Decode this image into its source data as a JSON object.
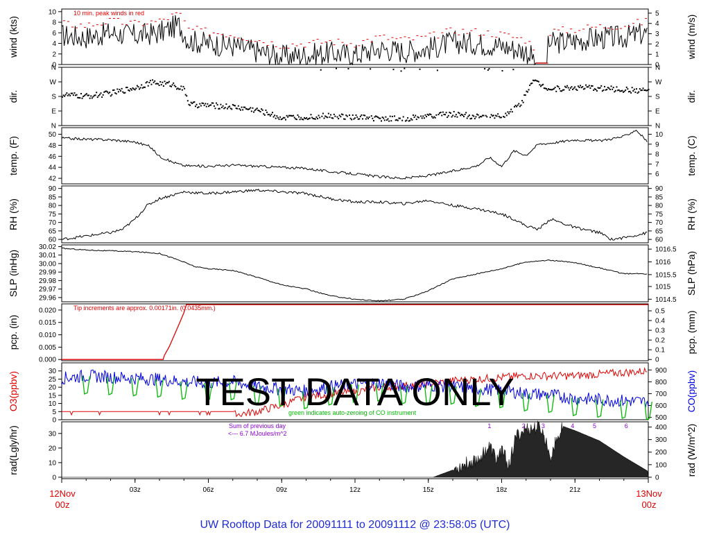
{
  "title": "UW Rooftop Data for 20091111  to  20091112 @ 23:58:05  (UTC)",
  "watermark": "TEST   DATA   ONLY",
  "colors": {
    "red": "#e00000",
    "blue": "#0000e0",
    "green": "#00bb00",
    "purple": "#8a00d4",
    "title_blue": "#1f2bd6"
  },
  "x_axis": {
    "start_label": [
      "12Nov",
      "00z"
    ],
    "end_label": [
      "13Nov",
      "00z"
    ],
    "ticks": [
      "03z",
      "06z",
      "09z",
      "12z",
      "15z",
      "18z",
      "21z"
    ]
  },
  "chart_data": [
    {
      "type": "line",
      "id": "wind",
      "ylabel_left": "wind (kts)",
      "ylabel_right": "wind (m/s)",
      "ylim": [
        0,
        10.5
      ],
      "yticks_left": [
        "0",
        "2",
        "4",
        "6",
        "8",
        "10"
      ],
      "yticks_right": [
        "0",
        "1",
        "2",
        "3",
        "4",
        "5"
      ],
      "right_tick_values": [
        0,
        1.94,
        3.89,
        5.83,
        7.78,
        9.72
      ],
      "annotation": "10 min. peak winds in red",
      "series": [
        {
          "name": "mean",
          "color": "#000000",
          "hours": [
            0,
            1,
            2,
            3,
            4,
            4.8,
            5.2,
            6,
            7,
            8,
            9,
            10,
            11,
            12,
            13,
            14,
            15,
            16,
            17,
            18,
            19,
            19.5,
            20,
            21,
            22,
            23,
            24
          ],
          "values": [
            5.5,
            5.2,
            6,
            5.5,
            6,
            7.5,
            4.5,
            4,
            3.5,
            2.5,
            1.5,
            1.8,
            2.2,
            1.8,
            3,
            2.5,
            3,
            4.2,
            4,
            3.5,
            2.5,
            0.3,
            4,
            4.5,
            5,
            5.2,
            6
          ]
        }
      ]
    },
    {
      "type": "scatter",
      "id": "dir",
      "ylabel_left": "dir.",
      "ylabel_right": "dir.",
      "ylim": [
        0,
        360
      ],
      "yticks_left": [
        "N",
        "E",
        "S",
        "W",
        "N"
      ],
      "yticks_right": [
        "N",
        "E",
        "S",
        "W",
        "N"
      ],
      "tick_values": [
        0,
        90,
        180,
        270,
        360
      ],
      "series": [
        {
          "name": "direction",
          "color": "#000000",
          "hours": [
            0,
            1,
            2,
            3,
            3.6,
            4.5,
            5,
            5.2,
            6,
            7,
            8,
            9,
            10,
            11,
            12,
            13,
            14,
            15,
            16,
            17,
            18,
            18.8,
            19.2,
            20,
            21,
            22,
            23,
            24
          ],
          "values": [
            190,
            180,
            200,
            235,
            265,
            255,
            220,
            130,
            125,
            115,
            95,
            45,
            55,
            60,
            50,
            45,
            40,
            60,
            70,
            55,
            60,
            140,
            280,
            225,
            235,
            230,
            220,
            215
          ]
        }
      ]
    },
    {
      "type": "line",
      "id": "temp",
      "ylabel_left": "temp. (F)",
      "ylabel_right": "temp. (C)",
      "ylim": [
        41,
        51.2
      ],
      "yticks_left": [
        "42",
        "44",
        "46",
        "48",
        "50"
      ],
      "yticks_right": [
        "6",
        "7",
        "8",
        "9",
        "10"
      ],
      "right_tick_values": [
        42.8,
        44.6,
        46.4,
        48.2,
        50
      ],
      "series": [
        {
          "name": "temperature",
          "color": "#000000",
          "hours": [
            0,
            1,
            2,
            3,
            3.6,
            4,
            4.5,
            5,
            6,
            7,
            8,
            9,
            10,
            11,
            12,
            13,
            14,
            15,
            16,
            17,
            17.5,
            18,
            18.5,
            19,
            19.5,
            20,
            21,
            22,
            23,
            23.5,
            24
          ],
          "values": [
            49.3,
            49.1,
            49,
            48.6,
            47.8,
            46,
            45,
            44.3,
            44.2,
            44.4,
            44.2,
            44,
            43.8,
            43.2,
            42.8,
            42.3,
            42,
            42.5,
            43.3,
            44.3,
            45.8,
            44.2,
            47,
            46.2,
            48.2,
            48.4,
            49,
            48.8,
            49.6,
            50.8,
            48.5
          ]
        }
      ]
    },
    {
      "type": "line",
      "id": "rh",
      "ylabel_left": "RH (%)",
      "ylabel_right": "RH (%)",
      "ylim": [
        58,
        91.5
      ],
      "yticks_left": [
        "60",
        "65",
        "70",
        "75",
        "80",
        "85",
        "90"
      ],
      "yticks_right": [
        "60",
        "65",
        "70",
        "75",
        "80",
        "85",
        "90"
      ],
      "series": [
        {
          "name": "relative humidity",
          "color": "#000000",
          "hours": [
            0,
            1,
            2,
            2.5,
            3,
            3.5,
            4,
            4.5,
            5,
            6,
            7,
            8,
            9,
            10,
            11,
            12,
            13,
            14,
            15,
            16,
            17,
            18,
            18.5,
            19,
            19.5,
            20,
            21,
            22,
            22.5,
            23,
            24
          ],
          "values": [
            60,
            62,
            64,
            66,
            72,
            80,
            84,
            86,
            88,
            87,
            88,
            89,
            88,
            87,
            84,
            82,
            82,
            81,
            83,
            80,
            78,
            75,
            72,
            68,
            66,
            72,
            67,
            64,
            60,
            61,
            64
          ]
        }
      ]
    },
    {
      "type": "line",
      "id": "slp",
      "ylabel_left": "SLP (inHg)",
      "ylabel_right": "SLP (hPa)",
      "ylim": [
        29.955,
        30.022
      ],
      "yticks_left": [
        "29.96",
        "29.97",
        "29.98",
        "29.99",
        "30.00",
        "30.01",
        "30.02"
      ],
      "yticks_right": [
        "1014.5",
        "1015",
        "1015.5",
        "1016",
        "1016.5"
      ],
      "right_tick_values": [
        29.958,
        29.973,
        29.987,
        30.002,
        30.017
      ],
      "series": [
        {
          "name": "sea level pressure",
          "color": "#000000",
          "hours": [
            0,
            1,
            2,
            3,
            4,
            4.8,
            5.5,
            6,
            7,
            8,
            9,
            10,
            11,
            12,
            13,
            13.5,
            14,
            15,
            16,
            17,
            18,
            19,
            20,
            21,
            22,
            23,
            24
          ],
          "values": [
            30.018,
            30.016,
            30.015,
            30.014,
            30.012,
            30.004,
            29.996,
            29.994,
            29.992,
            29.984,
            29.975,
            29.97,
            29.962,
            29.958,
            29.956,
            29.957,
            29.958,
            29.968,
            29.982,
            29.988,
            29.994,
            30.002,
            30.004,
            30.001,
            29.995,
            29.988,
            29.988
          ]
        }
      ]
    },
    {
      "type": "line",
      "id": "pcp",
      "ylabel_left": "pcp. (in)",
      "ylabel_right": "pcp. (mm)",
      "ylim": [
        -0.0005,
        0.0225
      ],
      "yticks_left": [
        "0.000",
        "0.005",
        "0.010",
        "0.015",
        "0.020"
      ],
      "yticks_right": [
        "0",
        "0.1",
        "0.2",
        "0.3",
        "0.4",
        "0.5"
      ],
      "right_tick_values": [
        0,
        0.00394,
        0.00787,
        0.01181,
        0.01575,
        0.01969
      ],
      "annotation": "Tip increments are approx. 0.00171in. (0.0435mm.)",
      "series": [
        {
          "name": "precipitation",
          "color": "#e00000",
          "hours": [
            0,
            4.15,
            4.2,
            4.4,
            4.55,
            4.7,
            4.85,
            5.0,
            5.1,
            24
          ],
          "values": [
            0,
            0,
            0.0017,
            0.0052,
            0.0086,
            0.012,
            0.0154,
            0.019,
            0.0222,
            0.0222
          ]
        }
      ]
    },
    {
      "type": "line",
      "id": "gas",
      "ylabel_left": "O3(ppbv)",
      "ylabel_right": "CO(ppbv)",
      "ylim": [
        0,
        35
      ],
      "yticks_left": [
        "0",
        "5",
        "10",
        "15",
        "20",
        "25",
        "30"
      ],
      "yticks_right": [
        "500",
        "600",
        "700",
        "800",
        "900"
      ],
      "right_range": [
        480,
        960
      ],
      "annotation": "green indicates auto-zeroing of CO instrument",
      "series": [
        {
          "name": "O3",
          "color": "#e00000",
          "hours": [
            0,
            7,
            8,
            9,
            10,
            11,
            12,
            13,
            14,
            15,
            16,
            17,
            18,
            19,
            20,
            21,
            22,
            23,
            24
          ],
          "values": [
            3,
            3,
            5,
            9,
            14,
            16,
            17,
            20,
            21,
            22,
            24,
            25,
            26,
            27,
            27,
            27,
            28,
            29,
            30
          ]
        },
        {
          "name": "CO",
          "color": "#0000e0",
          "axis": "right",
          "hours": [
            0,
            1,
            2,
            3,
            4,
            5,
            6,
            7,
            8,
            9,
            10,
            11,
            12,
            13,
            14,
            15,
            16,
            17,
            18,
            19,
            20,
            21,
            22,
            23,
            24
          ],
          "values": [
            830,
            850,
            840,
            830,
            820,
            800,
            790,
            800,
            760,
            740,
            720,
            760,
            780,
            790,
            760,
            770,
            760,
            740,
            730,
            700,
            690,
            660,
            650,
            640,
            630
          ]
        }
      ]
    },
    {
      "type": "area",
      "id": "rad",
      "ylabel_left": "rad(Lgly/hr)",
      "ylabel_right": "rad (W/m^2)",
      "ylim": [
        -1,
        38
      ],
      "yticks_left": [
        "0",
        "10",
        "20",
        "30"
      ],
      "yticks_right": [
        "0",
        "100",
        "200",
        "300",
        "400"
      ],
      "right_tick_values": [
        0,
        8.6,
        17.2,
        25.8,
        34.4
      ],
      "annotations": [
        "Sum of previous day",
        "<--- 6.7 MJoules/m^2"
      ],
      "markers": [
        "1",
        "2",
        "3",
        "4",
        "5",
        "6"
      ],
      "series": [
        {
          "name": "radiation",
          "color": "#222222",
          "hours": [
            0,
            0.6,
            15.2,
            16,
            16.5,
            17,
            17.5,
            17.8,
            18,
            18.3,
            18.6,
            19,
            19.2,
            19.6,
            20,
            20.5,
            21,
            22,
            23,
            24
          ],
          "values": [
            0,
            0,
            0,
            5,
            9,
            12,
            21,
            12,
            19,
            8,
            28,
            33,
            33,
            34,
            15,
            35,
            32,
            25,
            14,
            4
          ]
        }
      ]
    }
  ]
}
